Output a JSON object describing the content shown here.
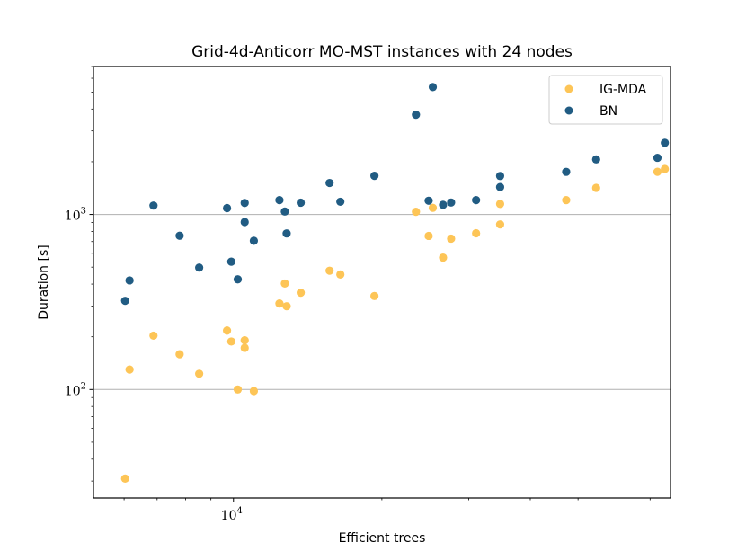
{
  "chart_data": {
    "type": "scatter",
    "title": "Grid-4d-Anticorr MO-MST instances with 24 nodes",
    "xlabel": "Efficient trees",
    "ylabel": "Duration [s]",
    "xscale": "log",
    "yscale": "log",
    "xlim": [
      5200,
      77000
    ],
    "ylim": [
      24,
      7000
    ],
    "x_major_ticks": [
      {
        "value": 10000,
        "base": "10",
        "exp": "4"
      }
    ],
    "y_major_ticks": [
      {
        "value": 100,
        "base": "10",
        "exp": "2"
      },
      {
        "value": 1000,
        "base": "10",
        "exp": "3"
      }
    ],
    "grid": "horizontal-major",
    "legend_position": "top-right",
    "series": [
      {
        "name": "IG-MDA",
        "color": "#FDC557",
        "points": [
          [
            6029,
            31
          ],
          [
            6155,
            130
          ],
          [
            6883,
            203
          ],
          [
            7776,
            159
          ],
          [
            8520,
            123
          ],
          [
            9703,
            217
          ],
          [
            9899,
            188
          ],
          [
            10202,
            100
          ],
          [
            10538,
            191
          ],
          [
            10538,
            173
          ],
          [
            10998,
            98
          ],
          [
            12395,
            310
          ],
          [
            12711,
            403
          ],
          [
            12819,
            299
          ],
          [
            13691,
            357
          ],
          [
            15666,
            477
          ],
          [
            16474,
            454
          ],
          [
            19318,
            342
          ],
          [
            23450,
            1035
          ],
          [
            24882,
            754
          ],
          [
            25370,
            1091
          ],
          [
            26613,
            567
          ],
          [
            27634,
            727
          ],
          [
            31052,
            781
          ],
          [
            34742,
            1148
          ],
          [
            34742,
            877
          ],
          [
            47305,
            1207
          ],
          [
            54410,
            1418
          ],
          [
            72436,
            1753
          ],
          [
            74984,
            1819
          ]
        ]
      },
      {
        "name": "BN",
        "color": "#215C83",
        "points": [
          [
            6029,
            321
          ],
          [
            6155,
            420
          ],
          [
            6883,
            1124
          ],
          [
            7776,
            756
          ],
          [
            8520,
            497
          ],
          [
            9703,
            1087
          ],
          [
            9899,
            537
          ],
          [
            10202,
            426
          ],
          [
            10538,
            1163
          ],
          [
            10538,
            905
          ],
          [
            10998,
            707
          ],
          [
            12395,
            1207
          ],
          [
            12711,
            1039
          ],
          [
            12819,
            779
          ],
          [
            13691,
            1167
          ],
          [
            15666,
            1513
          ],
          [
            16474,
            1182
          ],
          [
            19318,
            1661
          ],
          [
            23450,
            3713
          ],
          [
            24882,
            1198
          ],
          [
            25370,
            5340
          ],
          [
            26613,
            1135
          ],
          [
            27634,
            1170
          ],
          [
            31052,
            1207
          ],
          [
            34742,
            1658
          ],
          [
            34742,
            1434
          ],
          [
            47305,
            1751
          ],
          [
            54410,
            2063
          ],
          [
            72436,
            2106
          ],
          [
            74984,
            2565
          ]
        ]
      }
    ]
  }
}
